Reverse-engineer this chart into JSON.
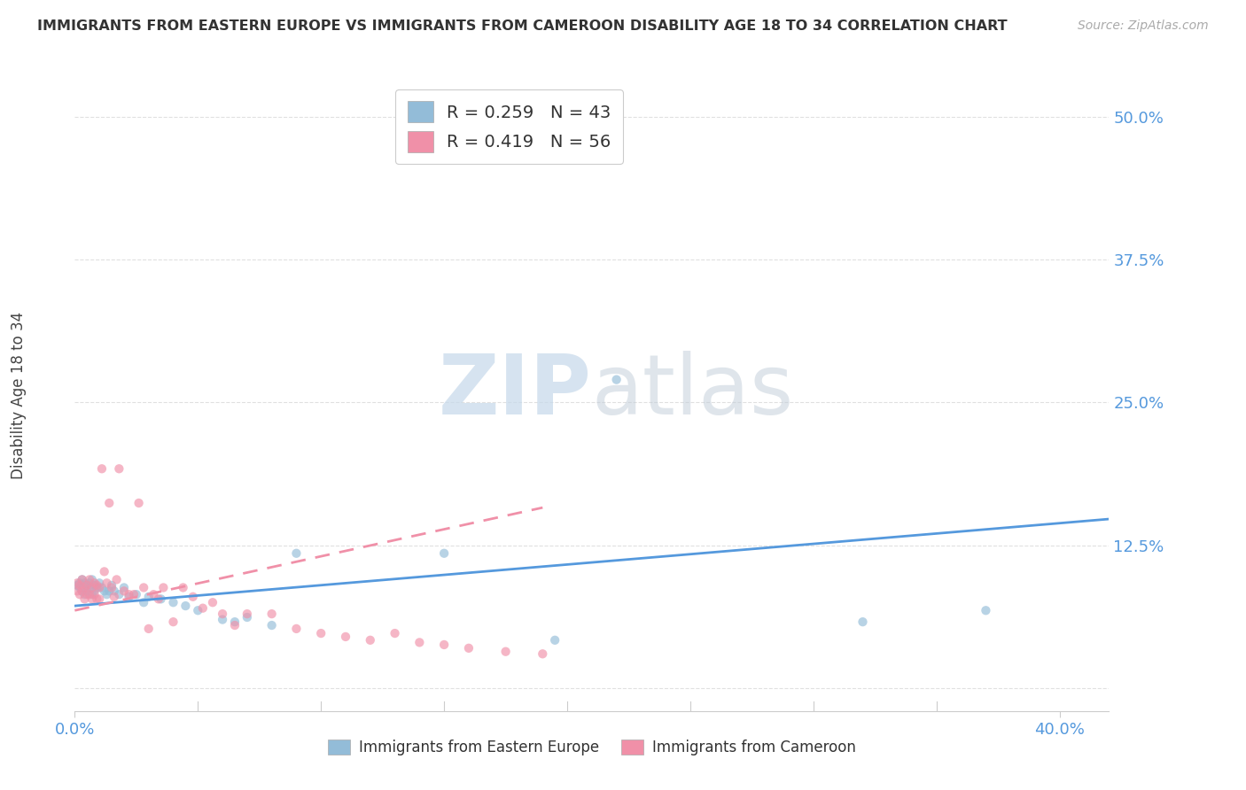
{
  "title": "IMMIGRANTS FROM EASTERN EUROPE VS IMMIGRANTS FROM CAMEROON DISABILITY AGE 18 TO 34 CORRELATION CHART",
  "source": "Source: ZipAtlas.com",
  "ylabel": "Disability Age 18 to 34",
  "xlim": [
    0.0,
    0.42
  ],
  "ylim": [
    -0.02,
    0.54
  ],
  "yticks": [
    0.0,
    0.125,
    0.25,
    0.375,
    0.5
  ],
  "ytick_labels": [
    "",
    "12.5%",
    "25.0%",
    "37.5%",
    "50.0%"
  ],
  "xtick_labels": [
    "0.0%",
    "40.0%"
  ],
  "xtick_positions": [
    0.0,
    0.4
  ],
  "legend_line1": "R = 0.259   N = 43",
  "legend_line2": "R = 0.419   N = 56",
  "eastern_europe_x": [
    0.001,
    0.002,
    0.002,
    0.003,
    0.003,
    0.004,
    0.004,
    0.005,
    0.005,
    0.006,
    0.006,
    0.007,
    0.007,
    0.008,
    0.008,
    0.009,
    0.01,
    0.011,
    0.012,
    0.013,
    0.014,
    0.015,
    0.016,
    0.018,
    0.02,
    0.022,
    0.025,
    0.028,
    0.03,
    0.035,
    0.04,
    0.045,
    0.05,
    0.06,
    0.065,
    0.07,
    0.08,
    0.09,
    0.15,
    0.195,
    0.22,
    0.32,
    0.37
  ],
  "eastern_europe_y": [
    0.09,
    0.092,
    0.088,
    0.095,
    0.085,
    0.092,
    0.082,
    0.09,
    0.085,
    0.092,
    0.088,
    0.095,
    0.082,
    0.09,
    0.085,
    0.088,
    0.092,
    0.088,
    0.085,
    0.082,
    0.085,
    0.09,
    0.085,
    0.082,
    0.088,
    0.08,
    0.082,
    0.075,
    0.08,
    0.078,
    0.075,
    0.072,
    0.068,
    0.06,
    0.058,
    0.062,
    0.055,
    0.118,
    0.118,
    0.042,
    0.27,
    0.058,
    0.068
  ],
  "cameroon_x": [
    0.001,
    0.001,
    0.002,
    0.002,
    0.003,
    0.003,
    0.004,
    0.004,
    0.005,
    0.005,
    0.006,
    0.006,
    0.007,
    0.007,
    0.008,
    0.008,
    0.009,
    0.009,
    0.01,
    0.01,
    0.011,
    0.012,
    0.013,
    0.014,
    0.015,
    0.016,
    0.017,
    0.018,
    0.02,
    0.022,
    0.024,
    0.026,
    0.028,
    0.03,
    0.032,
    0.034,
    0.036,
    0.04,
    0.044,
    0.048,
    0.052,
    0.056,
    0.06,
    0.065,
    0.07,
    0.08,
    0.09,
    0.1,
    0.11,
    0.12,
    0.13,
    0.14,
    0.15,
    0.16,
    0.175,
    0.19
  ],
  "cameroon_y": [
    0.092,
    0.085,
    0.09,
    0.082,
    0.095,
    0.085,
    0.088,
    0.078,
    0.09,
    0.082,
    0.095,
    0.082,
    0.088,
    0.078,
    0.092,
    0.082,
    0.09,
    0.078,
    0.088,
    0.078,
    0.192,
    0.102,
    0.092,
    0.162,
    0.088,
    0.08,
    0.095,
    0.192,
    0.085,
    0.082,
    0.082,
    0.162,
    0.088,
    0.052,
    0.082,
    0.078,
    0.088,
    0.058,
    0.088,
    0.08,
    0.07,
    0.075,
    0.065,
    0.055,
    0.065,
    0.065,
    0.052,
    0.048,
    0.045,
    0.042,
    0.048,
    0.04,
    0.038,
    0.035,
    0.032,
    0.03
  ],
  "ee_trend_x": [
    0.0,
    0.42
  ],
  "ee_trend_y": [
    0.072,
    0.148
  ],
  "cam_trend_x": [
    0.0,
    0.19
  ],
  "cam_trend_y": [
    0.068,
    0.158
  ],
  "watermark_zip": "ZIP",
  "watermark_atlas": "atlas",
  "background_color": "#ffffff",
  "scatter_alpha": 0.65,
  "scatter_size": 55,
  "eastern_europe_color": "#93bcd8",
  "cameroon_color": "#f090a8",
  "grid_color": "#e0e0e0",
  "axis_color": "#cccccc",
  "tick_color": "#5599dd",
  "title_color": "#333333",
  "source_color": "#aaaaaa",
  "trendline_blue_color": "#5599dd",
  "trendline_pink_color": "#f090a8"
}
